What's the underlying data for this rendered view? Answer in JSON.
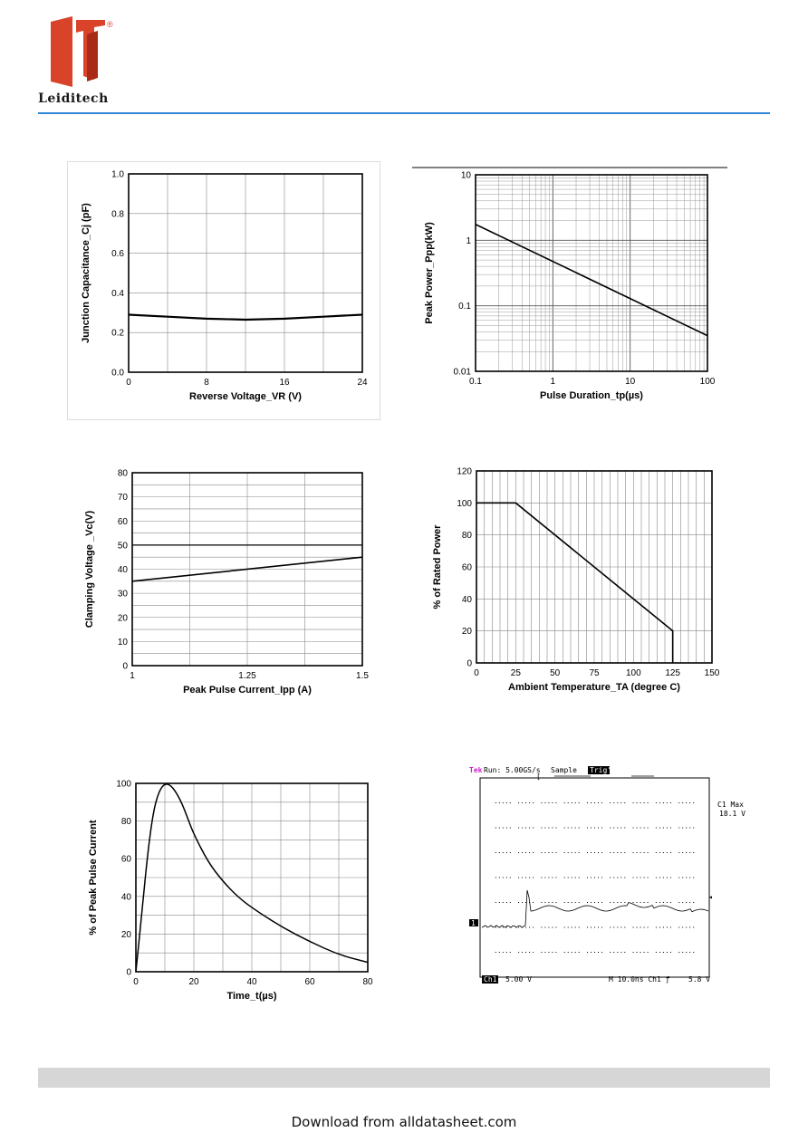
{
  "header": {
    "brand": "Leiditech",
    "registered": "®",
    "colors": {
      "logo": "#d9432a",
      "logo_dark": "#a82a17",
      "rule": "#2f86d6"
    }
  },
  "footer": {
    "download_text": "Download from alldatasheet.com"
  },
  "chart_data": [
    {
      "id": "cap",
      "type": "line",
      "title": "",
      "xlabel": "Reverse Voltage_VR (V)",
      "ylabel": "Junction Capacitance_Cj (pF)",
      "xlim": [
        0,
        24
      ],
      "ylim": [
        0,
        1.0
      ],
      "xticks": [
        "0",
        "8",
        "16",
        "24"
      ],
      "yticks": [
        "0.0",
        "0.2",
        "0.4",
        "0.6",
        "0.8",
        "1.0"
      ],
      "grid": true,
      "series": [
        {
          "x": [
            0,
            4,
            8,
            12,
            16,
            20,
            24
          ],
          "y": [
            0.29,
            0.28,
            0.27,
            0.265,
            0.27,
            0.28,
            0.29
          ]
        }
      ]
    },
    {
      "id": "pulse",
      "type": "line",
      "title": "",
      "xlabel": "Pulse Duration_tp(µs)",
      "ylabel": "Peak  Power_Ppp(kW)",
      "xscale": "log",
      "yscale": "log",
      "xlim": [
        0.1,
        100
      ],
      "ylim": [
        0.01,
        10
      ],
      "xticks": [
        "0.1",
        "1",
        "10",
        "100"
      ],
      "yticks": [
        "0.01",
        "0.1",
        "1",
        "10"
      ],
      "grid": true,
      "series": [
        {
          "x": [
            0.1,
            100
          ],
          "y": [
            1.75,
            0.035
          ]
        }
      ]
    },
    {
      "id": "clamp",
      "type": "line",
      "title": "",
      "xlabel": "Peak Pulse Current_Ipp (A)",
      "ylabel": "Clamping Voltage _Vc(V)",
      "xlim": [
        1,
        1.5
      ],
      "ylim": [
        0,
        80
      ],
      "xticks": [
        "1",
        "1.25",
        "1.5"
      ],
      "yticks": [
        "0",
        "10",
        "20",
        "30",
        "40",
        "50",
        "60",
        "70",
        "80"
      ],
      "grid": true,
      "series": [
        {
          "x": [
            1,
            1.5
          ],
          "y": [
            35,
            45
          ]
        }
      ]
    },
    {
      "id": "derate",
      "type": "line",
      "title": "",
      "xlabel": "Ambient  Temperature_TA (degree C)",
      "ylabel": "% of Rated Power",
      "xlim": [
        0,
        150
      ],
      "ylim": [
        0,
        120
      ],
      "xticks": [
        "0",
        "25",
        "50",
        "75",
        "100",
        "125",
        "150"
      ],
      "yticks": [
        "0",
        "20",
        "40",
        "60",
        "80",
        "100",
        "120"
      ],
      "grid": true,
      "series": [
        {
          "x": [
            0,
            25,
            125,
            125
          ],
          "y": [
            100,
            100,
            20,
            0
          ]
        }
      ]
    },
    {
      "id": "wave",
      "type": "line",
      "title": "",
      "xlabel": "Time_t(µs)",
      "ylabel": "% of Peak Pulse Current",
      "xlim": [
        0,
        80
      ],
      "ylim": [
        0,
        100
      ],
      "xticks": [
        "0",
        "20",
        "40",
        "60",
        "80"
      ],
      "yticks": [
        "0",
        "20",
        "40",
        "60",
        "80",
        "100"
      ],
      "grid": true,
      "series": [
        {
          "x": [
            0,
            2,
            4,
            6,
            8,
            10,
            12,
            14,
            16,
            18,
            20,
            25,
            30,
            35,
            40,
            50,
            60,
            70,
            80
          ],
          "y": [
            0,
            30,
            62,
            85,
            96,
            100,
            99,
            95,
            89,
            81,
            73,
            58,
            48,
            40,
            34,
            24,
            16,
            9,
            5
          ]
        }
      ]
    }
  ],
  "scope": {
    "brand": "Tek",
    "run": "Run: 5.00GS/s",
    "mode": "Sample",
    "trig": "Trig'd",
    "max_label": "C1 Max",
    "max_value": "18.1 V",
    "ch_marker": "1",
    "ch_label": "Ch1",
    "ch_scale": "5.00 V",
    "timebase": "M 10.0ns  Ch1  ƒ",
    "trig_level": "5.8 V",
    "colors": {
      "brand": "#cc22cc"
    }
  }
}
